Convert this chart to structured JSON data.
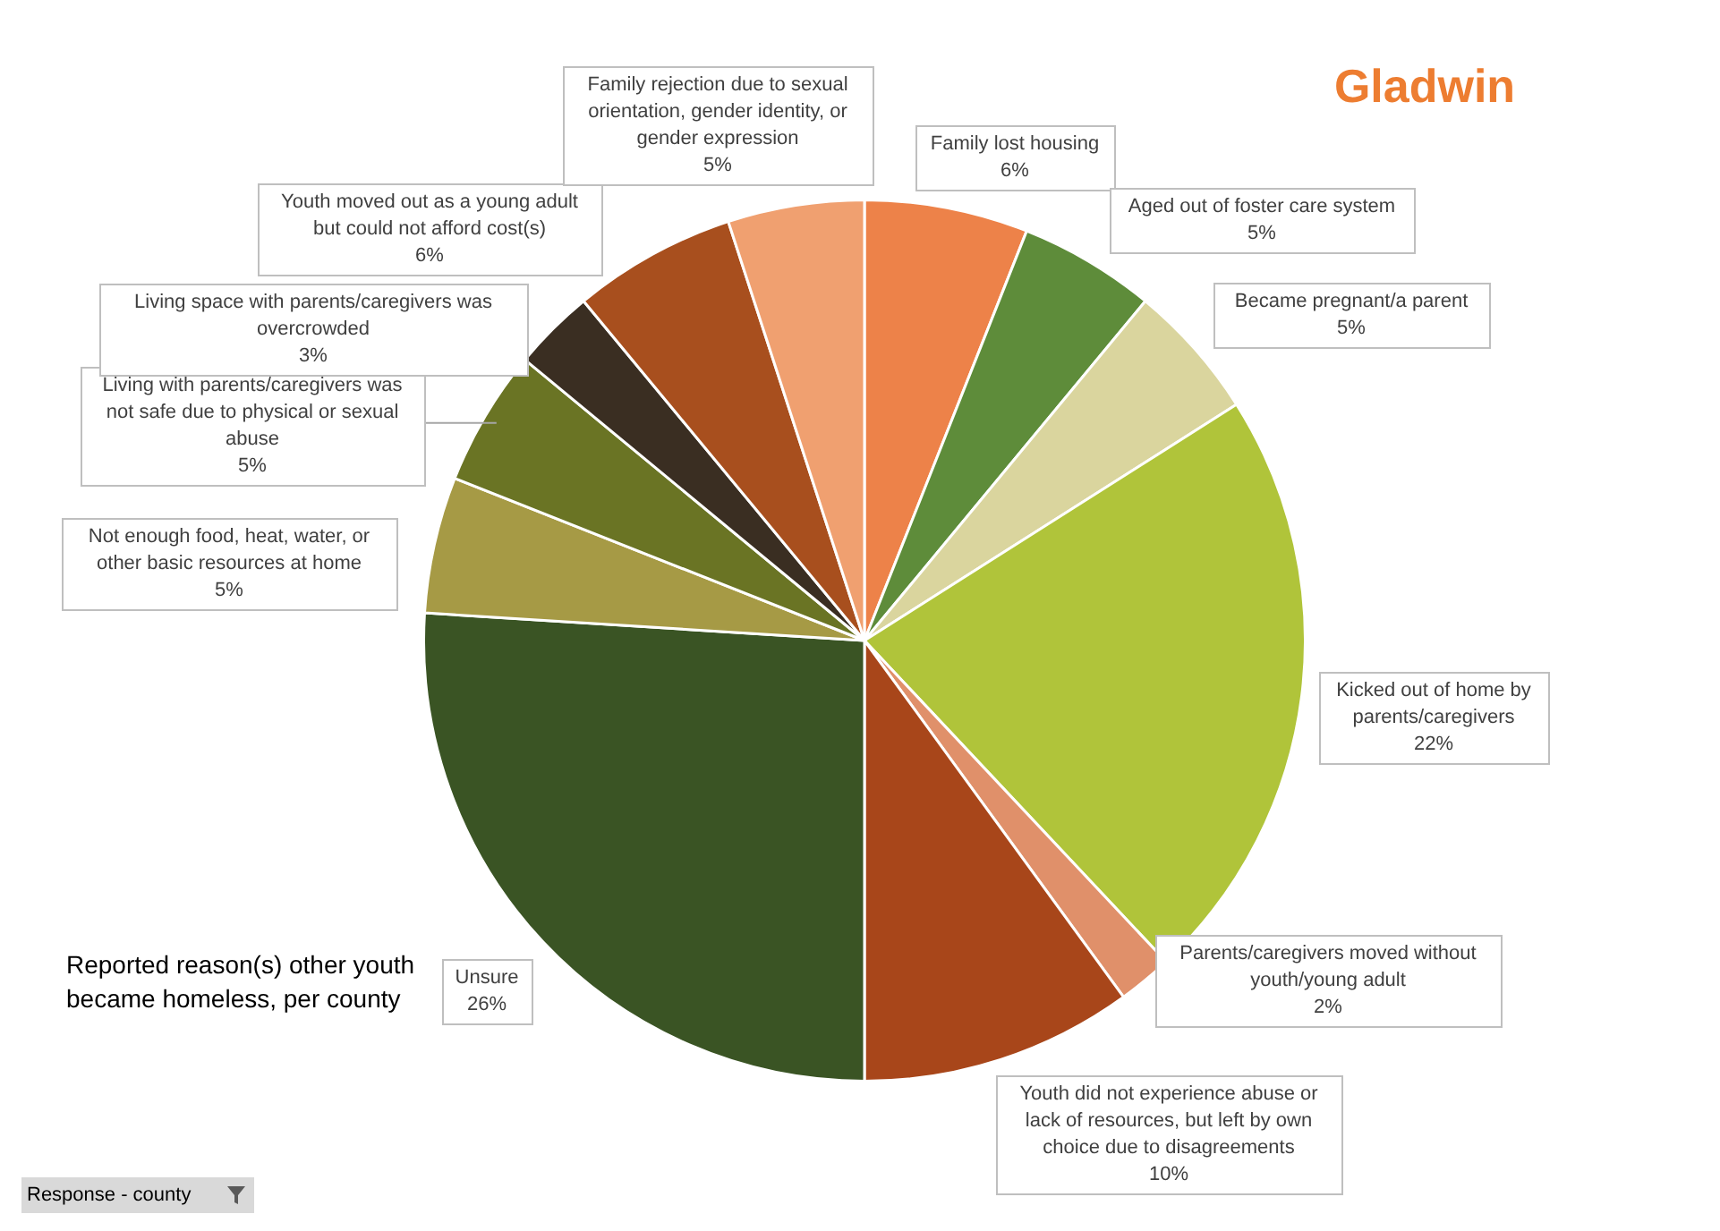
{
  "chart_data": {
    "type": "pie",
    "title": "Gladwin",
    "categories": [
      "Family lost housing",
      "Aged out of foster care system",
      "Became pregnant/a parent",
      "Kicked out of home by parents/caregivers",
      "Parents/caregivers moved without youth/young adult",
      "Youth did not experience abuse or lack of resources, but left by own choice due to disagreements",
      "Unsure",
      "Not enough food, heat, water, or other basic resources at home",
      "Living with parents/caregivers was not safe due to physical or sexual abuse",
      "Living space with parents/caregivers was overcrowded",
      "Youth moved out as a young adult but could not afford cost(s)",
      "Family rejection due to sexual orientation, gender identity, or gender expression"
    ],
    "values": [
      6,
      5,
      5,
      22,
      2,
      10,
      26,
      5,
      5,
      3,
      6,
      5
    ],
    "value_labels": [
      "6%",
      "5%",
      "5%",
      "22%",
      "2%",
      "10%",
      "26%",
      "5%",
      "5%",
      "3%",
      "6%",
      "5%"
    ],
    "colors": [
      "#ed8249",
      "#5e8c3a",
      "#dad59e",
      "#b0c43a",
      "#e0906a",
      "#a8461a",
      "#3a5424",
      "#a69a45",
      "#6a7424",
      "#3a2e22",
      "#a84f1e",
      "#f0a070"
    ],
    "annotations": [
      "Reported reason(s) other youth became homeless, per county",
      "Response - county"
    ],
    "legend": false
  }
}
